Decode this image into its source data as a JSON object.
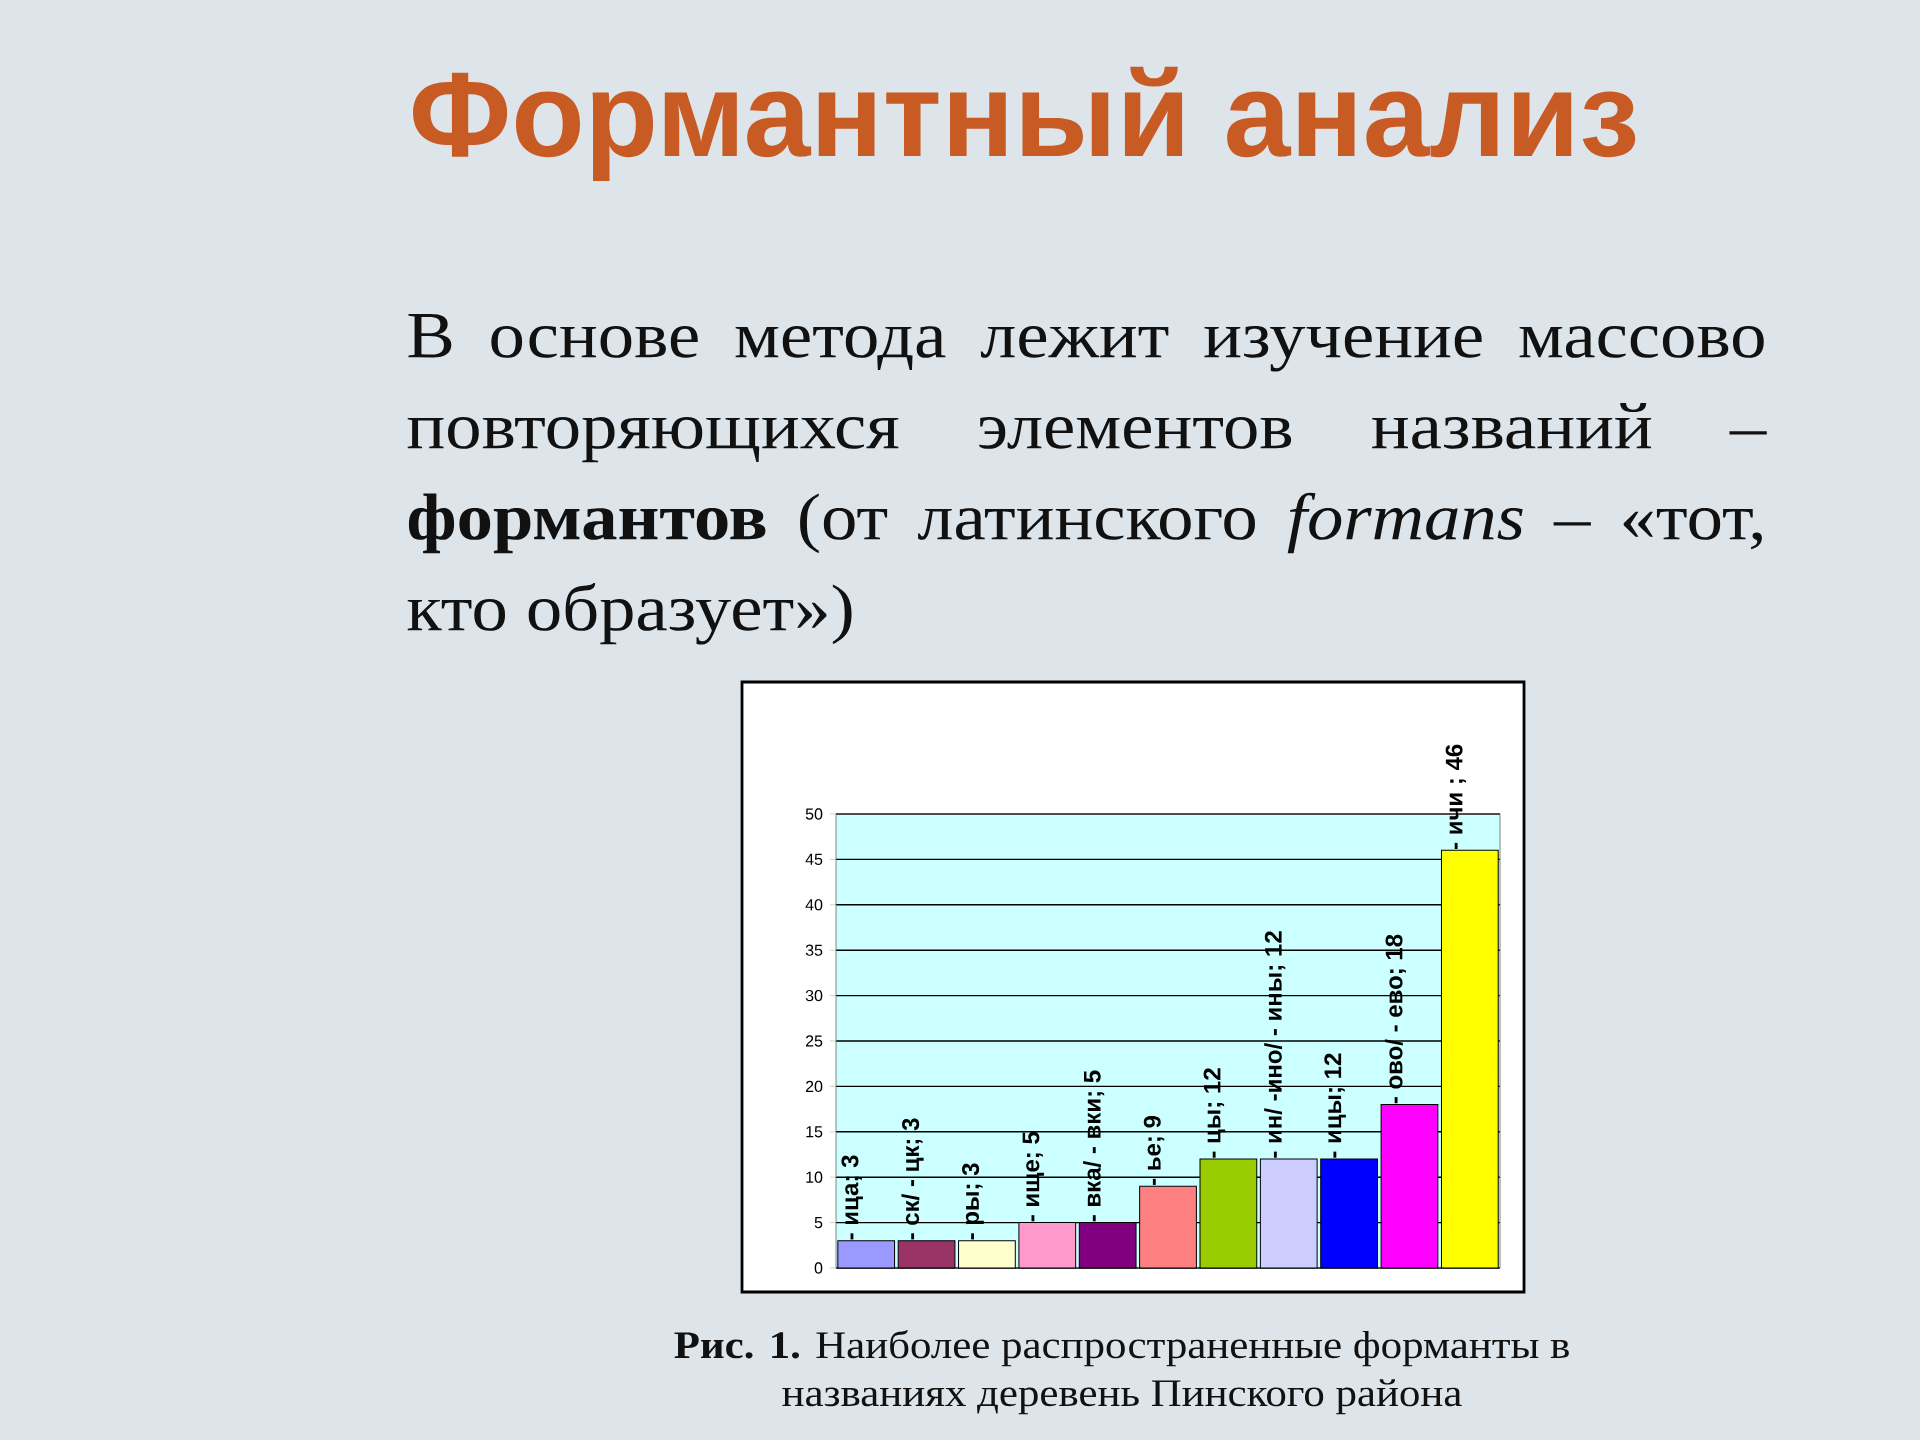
{
  "chart_data": {
    "type": "bar",
    "title": "Формантный анализ",
    "subtitle": "В основе метода лежит изучение массово повторяющихся элементов названий – **формантов** (от латинского *formans* – «тот, кто образует»)",
    "annotations": [
      "**Рис. 1.** Наиболее распространенные форманты в названиях деревень Пинского района"
    ],
    "categories": [
      null,
      null,
      null,
      null,
      null,
      null,
      null,
      null,
      null,
      null,
      null
    ],
    "values": [
      3,
      3,
      3,
      5,
      5,
      9,
      12,
      12,
      12,
      18,
      46
    ],
    "colors": [
      "#9999ff",
      "#993366",
      "#ffffcc",
      "#ff99cc",
      "#800080",
      "#ff8080",
      "#99cc00",
      "#ccccff",
      "#0000ff",
      "#ff00ff",
      "#ffff00"
    ],
    "value_labels": [
      "- ица; 3",
      "- ск/ - цк; 3",
      "- ры; 3",
      "- ище; 5",
      "- вка/ - вки; 5",
      "- ье; 9",
      "- цы; 12",
      "- ин/ -ино/ - ины; 12",
      "- ицы; 12",
      "- ово/ - ево; 18",
      "- ичи ; 46"
    ],
    "ylim": [
      0,
      50
    ],
    "yticks": [
      0,
      5,
      10,
      15,
      20,
      25,
      30,
      35,
      40,
      45,
      50
    ],
    "grid": "y",
    "tick_labels": "y"
  }
}
